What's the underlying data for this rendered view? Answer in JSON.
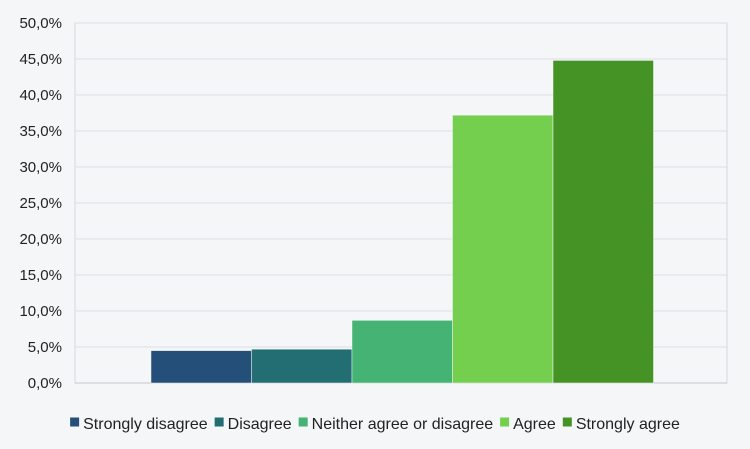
{
  "chart_data": {
    "type": "bar",
    "title": "",
    "xlabel": "",
    "ylabel": "",
    "ylim": [
      0,
      50
    ],
    "ytick_step": 5,
    "ytick_labels": [
      "0,0%",
      "5,0%",
      "10,0%",
      "15,0%",
      "20,0%",
      "25,0%",
      "30,0%",
      "35,0%",
      "40,0%",
      "45,0%",
      "50,0%"
    ],
    "grid": true,
    "legend_position": "bottom",
    "series": [
      {
        "name": "Strongly disagree",
        "value": 4.5,
        "color": "#244f78"
      },
      {
        "name": "Disagree",
        "value": 4.7,
        "color": "#226e73"
      },
      {
        "name": "Neither agree or disagree",
        "value": 8.7,
        "color": "#45b373"
      },
      {
        "name": "Agree",
        "value": 37.2,
        "color": "#74cf4e"
      },
      {
        "name": "Strongly agree",
        "value": 44.8,
        "color": "#459325"
      }
    ]
  }
}
